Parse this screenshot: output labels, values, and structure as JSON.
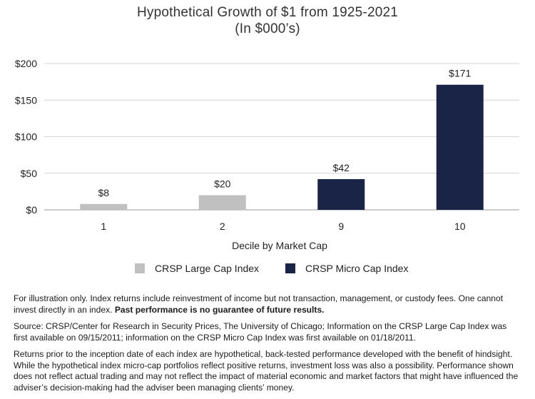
{
  "title_line1": "Hypothetical Growth of $1 from 1925-2021",
  "title_line2": "(In $000’s)",
  "chart_data": {
    "type": "bar",
    "categories": [
      "1",
      "2",
      "9",
      "10"
    ],
    "values": [
      8,
      20,
      42,
      171
    ],
    "data_labels": [
      "$8",
      "$20",
      "$42",
      "$171"
    ],
    "bar_series": [
      "CRSP Large Cap Index",
      "CRSP Large Cap Index",
      "CRSP Micro Cap Index",
      "CRSP Micro Cap Index"
    ],
    "xlabel": "Decile by Market Cap",
    "ylim": [
      0,
      200
    ],
    "yticks": [
      0,
      50,
      100,
      150,
      200
    ],
    "ytick_labels": [
      "$0",
      "$50",
      "$100",
      "$150",
      "$200"
    ],
    "grid": true,
    "legend": [
      {
        "name": "CRSP Large Cap Index",
        "color": "#c0c0c0"
      },
      {
        "name": "CRSP Micro Cap Index",
        "color": "#1a2447"
      }
    ]
  },
  "notes": {
    "p1_text": "For illustration only. Index returns include reinvestment of income but not transaction, management, or custody fees. One cannot invest directly in an index. ",
    "p1_bold": "Past performance is no guarantee of future results.",
    "p2": "Source: CRSP/Center for Research in Security Prices, The University of Chicago; Information on the CRSP Large Cap Index was first available on 09/15/2011; information on the CRSP Micro Cap Index was first available on 01/18/2011.",
    "p3": "Returns prior to the inception date of each index are hypothetical, back-tested performance developed with the benefit of hindsight. While the hypothetical index micro-cap portfolios reflect positive returns, investment loss was also a possibility. Performance shown does not reflect actual trading and may not reflect the impact of material economic and market factors that might have influenced the adviser’s decision-making had the adviser been managing clients’ money."
  }
}
